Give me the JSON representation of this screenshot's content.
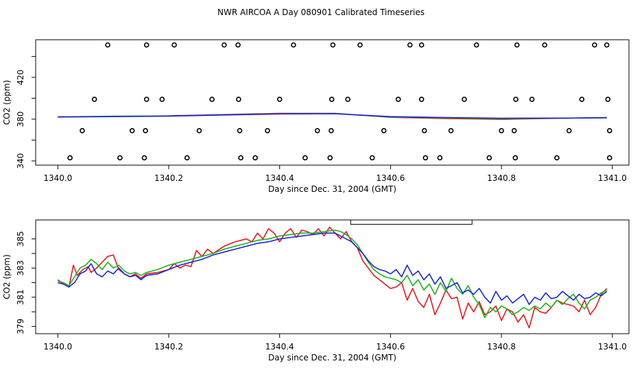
{
  "title": "NWR AIRCOA A  Day 080901  Calibrated Timeseries",
  "colors": {
    "series1": "#e8141e",
    "series2": "#18b418",
    "series3": "#1a24d4",
    "axis": "#000000"
  },
  "chart_data": [
    {
      "type": "scatter",
      "xlabel": "Day since Dec. 31, 2004 (GMT)",
      "ylabel": "CO2 (ppm)",
      "xlim": [
        1339.96,
        1341.03
      ],
      "ylim": [
        336,
        456
      ],
      "xticks": [
        1340.0,
        1340.2,
        1340.4,
        1340.6,
        1340.8,
        1341.0
      ],
      "xtick_labels": [
        "1340.0",
        "1340.2",
        "1340.4",
        "1340.6",
        "1340.8",
        "1341.0"
      ],
      "yticks": [
        340,
        380,
        420
      ],
      "ytick_labels": [
        "340",
        "380",
        "420"
      ],
      "yticks_unlabeled": [
        360,
        400,
        440
      ],
      "points": {
        "x": [
          1340.09,
          1340.16,
          1340.21,
          1340.3,
          1340.325,
          1340.425,
          1340.496,
          1340.545,
          1340.635,
          1340.656,
          1340.755,
          1340.828,
          1340.878,
          1340.968,
          1340.99,
          1340.066,
          1340.16,
          1340.188,
          1340.278,
          1340.326,
          1340.4,
          1340.494,
          1340.523,
          1340.614,
          1340.656,
          1340.733,
          1340.826,
          1340.855,
          1340.945,
          1340.992,
          1340.044,
          1340.134,
          1340.158,
          1340.255,
          1340.328,
          1340.378,
          1340.468,
          1340.493,
          1340.588,
          1340.661,
          1340.709,
          1340.8,
          1340.823,
          1340.922,
          1340.995,
          1340.022,
          1340.112,
          1340.156,
          1340.233,
          1340.33,
          1340.356,
          1340.446,
          1340.491,
          1340.567,
          1340.663,
          1340.689,
          1340.778,
          1340.825,
          1340.9,
          1340.995
        ],
        "y": [
          451,
          451,
          451,
          451,
          451,
          451,
          451,
          451,
          451,
          451,
          451,
          451,
          451,
          451,
          451,
          399,
          399,
          399,
          399,
          399,
          399,
          399,
          399,
          399,
          399,
          399,
          399,
          399,
          399,
          399,
          369,
          369,
          369,
          369,
          369,
          369,
          369,
          369,
          369,
          369,
          369,
          369,
          369,
          369,
          369,
          343,
          343,
          343,
          343,
          343,
          343,
          343,
          343,
          343,
          343,
          343,
          343,
          343,
          343,
          343
        ]
      },
      "series": [
        {
          "name": "red",
          "x": [
            1340.0,
            1340.1,
            1340.2,
            1340.3,
            1340.4,
            1340.5,
            1340.6,
            1340.7,
            1340.8,
            1340.9,
            1340.99
          ],
          "values": [
            382.3,
            382.6,
            383.2,
            384.4,
            385.6,
            385.6,
            381.8,
            380.6,
            379.8,
            380.8,
            381.6
          ]
        },
        {
          "name": "green",
          "x": [
            1340.0,
            1340.1,
            1340.2,
            1340.3,
            1340.4,
            1340.5,
            1340.6,
            1340.7,
            1340.8,
            1340.9,
            1340.99
          ],
          "values": [
            382.1,
            382.8,
            383.0,
            384.2,
            385.2,
            385.4,
            382.0,
            381.2,
            380.4,
            380.9,
            381.4
          ]
        },
        {
          "name": "blue",
          "x": [
            1340.0,
            1340.1,
            1340.2,
            1340.3,
            1340.4,
            1340.5,
            1340.6,
            1340.7,
            1340.8,
            1340.9,
            1340.99
          ],
          "values": [
            382.0,
            382.4,
            382.9,
            384.0,
            385.0,
            385.2,
            382.4,
            381.6,
            380.9,
            381.0,
            381.3
          ]
        }
      ]
    },
    {
      "type": "line",
      "xlabel": "Day since Dec. 31, 2004 (GMT)",
      "ylabel": "CO2 (ppm)",
      "xlim": [
        1339.96,
        1341.03
      ],
      "ylim": [
        378.5,
        386.3
      ],
      "xticks": [
        1340.0,
        1340.2,
        1340.4,
        1340.6,
        1340.8,
        1341.0
      ],
      "xtick_labels": [
        "1340.0",
        "1340.2",
        "1340.4",
        "1340.6",
        "1340.8",
        "1341.0"
      ],
      "yticks": [
        379,
        381,
        383,
        385
      ],
      "ytick_labels": [
        "379",
        "381",
        "383",
        "385"
      ],
      "yticks_unlabeled": [
        380,
        382,
        384
      ],
      "flag_box": {
        "x_start": 1340.528,
        "x_end": 1340.747,
        "y_bottom": 386.0
      },
      "series": [
        {
          "name": "red",
          "x": [
            1340.0,
            1340.01,
            1340.02,
            1340.028,
            1340.035,
            1340.045,
            1340.055,
            1340.06,
            1340.07,
            1340.08,
            1340.09,
            1340.1,
            1340.11,
            1340.12,
            1340.13,
            1340.14,
            1340.15,
            1340.16,
            1340.18,
            1340.2,
            1340.21,
            1340.22,
            1340.23,
            1340.24,
            1340.25,
            1340.26,
            1340.27,
            1340.28,
            1340.3,
            1340.32,
            1340.34,
            1340.35,
            1340.36,
            1340.37,
            1340.38,
            1340.39,
            1340.4,
            1340.41,
            1340.42,
            1340.43,
            1340.44,
            1340.45,
            1340.46,
            1340.47,
            1340.48,
            1340.49,
            1340.5,
            1340.51,
            1340.52,
            1340.53,
            1340.54,
            1340.55,
            1340.56,
            1340.57,
            1340.58,
            1340.59,
            1340.6,
            1340.61,
            1340.62,
            1340.63,
            1340.64,
            1340.65,
            1340.66,
            1340.67,
            1340.68,
            1340.69,
            1340.7,
            1340.71,
            1340.72,
            1340.73,
            1340.74,
            1340.75,
            1340.76,
            1340.77,
            1340.78,
            1340.79,
            1340.8,
            1340.81,
            1340.82,
            1340.83,
            1340.84,
            1340.85,
            1340.86,
            1340.87,
            1340.88,
            1340.89,
            1340.9,
            1340.91,
            1340.92,
            1340.93,
            1340.94,
            1340.95,
            1340.96,
            1340.97,
            1340.98,
            1340.99
          ],
          "values": [
            382.2,
            381.9,
            381.7,
            383.2,
            382.5,
            382.9,
            383.1,
            382.7,
            383.0,
            383.4,
            383.8,
            383.9,
            382.9,
            382.6,
            382.4,
            382.6,
            382.3,
            382.6,
            382.7,
            382.9,
            383.3,
            383.0,
            383.2,
            383.1,
            384.2,
            383.8,
            384.3,
            384.0,
            384.5,
            384.8,
            385.0,
            384.8,
            385.4,
            385.0,
            385.7,
            385.4,
            384.8,
            385.4,
            385.7,
            385.1,
            385.6,
            385.5,
            385.3,
            385.7,
            385.2,
            385.8,
            385.4,
            385.0,
            385.5,
            384.8,
            384.4,
            383.5,
            383.0,
            382.5,
            382.2,
            381.9,
            381.6,
            381.7,
            382.0,
            380.8,
            381.6,
            380.7,
            380.3,
            381.2,
            379.8,
            380.6,
            381.5,
            380.9,
            381.0,
            379.5,
            380.6,
            380.0,
            380.7,
            379.8,
            380.0,
            380.4,
            379.4,
            380.2,
            380.0,
            379.3,
            379.8,
            378.9,
            380.3,
            380.0,
            379.9,
            380.3,
            380.8,
            380.6,
            380.5,
            380.4,
            380.0,
            380.8,
            379.8,
            380.3,
            381.2,
            381.6
          ]
        },
        {
          "name": "green",
          "x": [
            1340.0,
            1340.01,
            1340.02,
            1340.03,
            1340.04,
            1340.05,
            1340.06,
            1340.07,
            1340.08,
            1340.09,
            1340.1,
            1340.11,
            1340.12,
            1340.13,
            1340.14,
            1340.15,
            1340.16,
            1340.18,
            1340.2,
            1340.22,
            1340.24,
            1340.26,
            1340.28,
            1340.3,
            1340.32,
            1340.34,
            1340.36,
            1340.38,
            1340.4,
            1340.42,
            1340.44,
            1340.46,
            1340.48,
            1340.5,
            1340.51,
            1340.52,
            1340.53,
            1340.54,
            1340.55,
            1340.56,
            1340.57,
            1340.58,
            1340.59,
            1340.6,
            1340.61,
            1340.62,
            1340.63,
            1340.64,
            1340.65,
            1340.66,
            1340.67,
            1340.68,
            1340.69,
            1340.7,
            1340.71,
            1340.72,
            1340.73,
            1340.74,
            1340.75,
            1340.76,
            1340.77,
            1340.78,
            1340.79,
            1340.8,
            1340.81,
            1340.82,
            1340.83,
            1340.84,
            1340.85,
            1340.86,
            1340.87,
            1340.88,
            1340.89,
            1340.9,
            1340.91,
            1340.92,
            1340.93,
            1340.94,
            1340.95,
            1340.96,
            1340.97,
            1340.98,
            1340.99
          ],
          "values": [
            382.1,
            382.0,
            381.8,
            382.4,
            383.0,
            383.2,
            383.6,
            383.3,
            382.9,
            383.4,
            383.0,
            383.2,
            382.8,
            382.6,
            382.7,
            382.5,
            382.7,
            382.9,
            383.2,
            383.4,
            383.6,
            383.8,
            384.0,
            384.3,
            384.5,
            384.7,
            384.9,
            385.0,
            385.2,
            385.3,
            385.4,
            385.4,
            385.5,
            385.6,
            385.5,
            385.3,
            385.0,
            384.6,
            384.0,
            383.4,
            382.9,
            382.6,
            382.4,
            382.3,
            382.2,
            382.0,
            382.5,
            381.8,
            382.2,
            381.5,
            381.9,
            381.2,
            382.0,
            381.4,
            382.3,
            381.6,
            381.2,
            381.8,
            381.0,
            380.5,
            379.6,
            380.3,
            380.0,
            380.4,
            380.2,
            379.8,
            380.0,
            380.3,
            380.1,
            380.4,
            380.2,
            380.6,
            380.3,
            380.8,
            380.5,
            380.9,
            381.2,
            380.6,
            380.2,
            380.8,
            381.0,
            381.3,
            381.5
          ]
        },
        {
          "name": "blue",
          "x": [
            1340.0,
            1340.01,
            1340.02,
            1340.03,
            1340.04,
            1340.05,
            1340.06,
            1340.07,
            1340.08,
            1340.09,
            1340.1,
            1340.11,
            1340.12,
            1340.13,
            1340.14,
            1340.15,
            1340.16,
            1340.18,
            1340.2,
            1340.22,
            1340.24,
            1340.26,
            1340.28,
            1340.3,
            1340.32,
            1340.34,
            1340.36,
            1340.38,
            1340.4,
            1340.42,
            1340.44,
            1340.46,
            1340.48,
            1340.5,
            1340.51,
            1340.52,
            1340.53,
            1340.54,
            1340.55,
            1340.56,
            1340.57,
            1340.58,
            1340.59,
            1340.6,
            1340.61,
            1340.62,
            1340.63,
            1340.64,
            1340.65,
            1340.66,
            1340.67,
            1340.68,
            1340.69,
            1340.7,
            1340.71,
            1340.72,
            1340.73,
            1340.74,
            1340.75,
            1340.76,
            1340.77,
            1340.78,
            1340.79,
            1340.8,
            1340.81,
            1340.82,
            1340.83,
            1340.84,
            1340.85,
            1340.86,
            1340.87,
            1340.88,
            1340.89,
            1340.9,
            1340.91,
            1340.92,
            1340.93,
            1340.94,
            1340.95,
            1340.96,
            1340.97,
            1340.98,
            1340.99
          ],
          "values": [
            382.0,
            381.9,
            381.7,
            382.0,
            382.6,
            382.8,
            383.3,
            382.6,
            382.4,
            382.8,
            382.6,
            383.0,
            382.6,
            382.4,
            382.5,
            382.2,
            382.5,
            382.6,
            382.9,
            383.2,
            383.4,
            383.6,
            383.9,
            384.1,
            384.3,
            384.5,
            384.7,
            384.8,
            385.0,
            385.1,
            385.2,
            385.3,
            385.4,
            385.4,
            385.2,
            385.0,
            384.8,
            384.4,
            384.0,
            383.5,
            383.1,
            382.9,
            382.8,
            382.6,
            382.9,
            382.4,
            383.2,
            382.5,
            382.8,
            382.2,
            382.6,
            381.9,
            382.4,
            381.6,
            381.8,
            382.0,
            381.3,
            381.5,
            381.2,
            381.6,
            381.0,
            380.6,
            381.4,
            380.8,
            381.1,
            380.6,
            380.9,
            381.2,
            380.5,
            381.0,
            380.8,
            381.3,
            380.9,
            381.0,
            381.4,
            381.1,
            380.8,
            381.2,
            380.9,
            381.0,
            381.3,
            381.1,
            381.4
          ]
        }
      ]
    }
  ]
}
